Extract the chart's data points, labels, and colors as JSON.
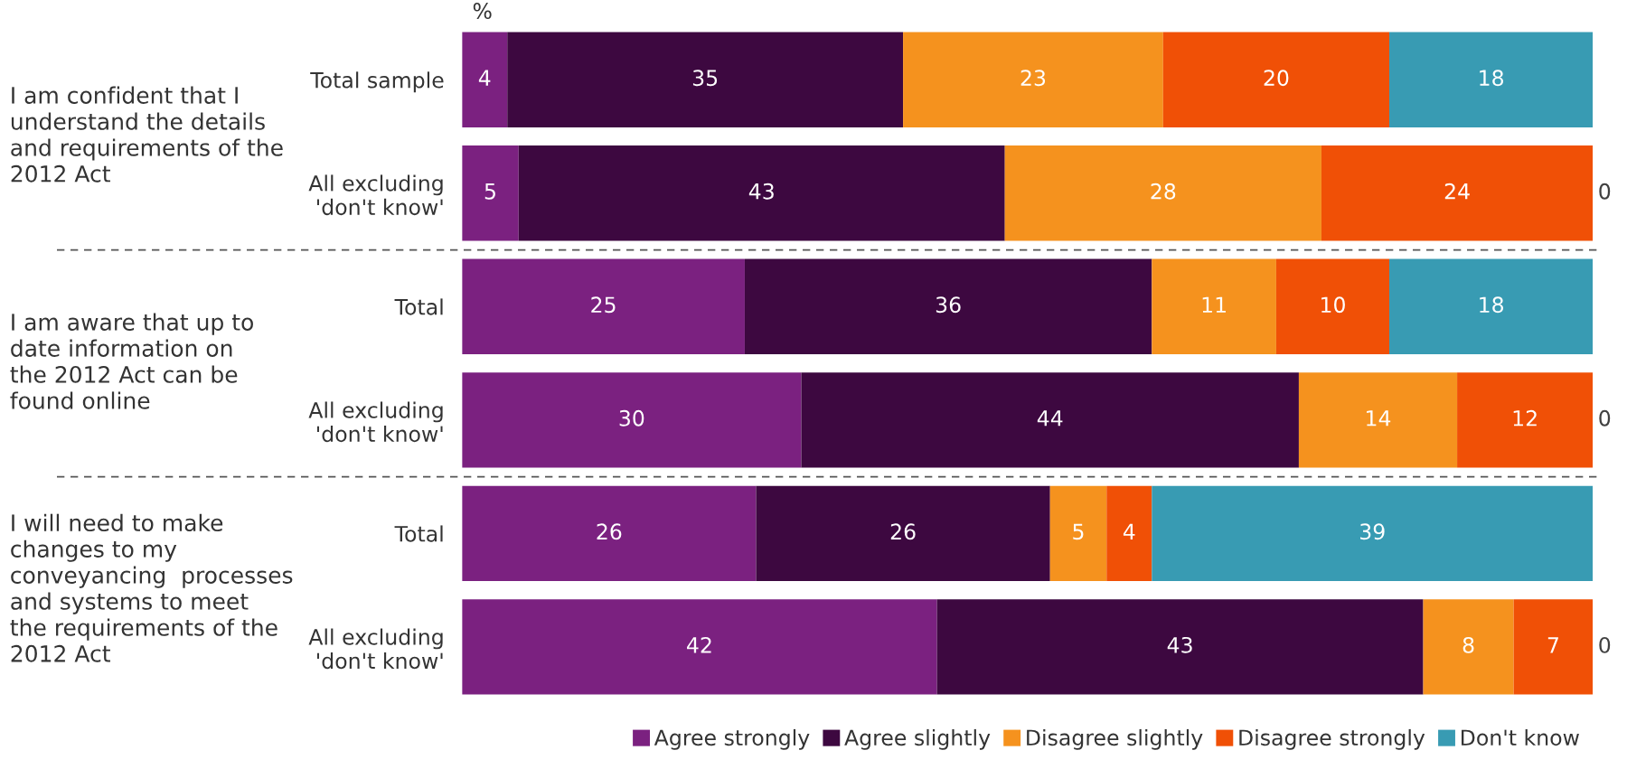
{
  "chart_data": {
    "type": "bar",
    "orientation": "horizontal",
    "stacked": true,
    "data_labels": true,
    "legend": "bottom",
    "grid": false,
    "categories": [
      "Total sample",
      "All excluding\n'don't know'",
      "Total",
      "All excluding\n'don't know'",
      "Total",
      "All excluding\n'don't know'"
    ],
    "series": [
      {
        "name": "Agree strongly",
        "color": "#7b2180",
        "values": [
          4,
          5,
          25,
          30,
          26,
          42
        ]
      },
      {
        "name": "Agree slightly",
        "color": "#3d0840",
        "values": [
          35,
          43,
          36,
          44,
          26,
          43
        ]
      },
      {
        "name": "Disagree slightly",
        "color": "#f5921e",
        "values": [
          23,
          28,
          11,
          14,
          5,
          8
        ]
      },
      {
        "name": "Disagree strongly",
        "color": "#f05006",
        "values": [
          20,
          24,
          10,
          12,
          4,
          7
        ]
      },
      {
        "name": "Don't know",
        "color": "#389bb3",
        "values": [
          18,
          0,
          18,
          0,
          39,
          0
        ]
      }
    ],
    "annotations": [
      "%",
      "I am confident that I\nunderstand the details\nand requirements of the\n2012 Act",
      "I am aware that up to\ndate information on\nthe 2012 Act can be\nfound online",
      "I will need to make\nchanges to my\nconveyancing  processes\nand systems to meet\nthe requirements of the\n2012 Act"
    ]
  }
}
